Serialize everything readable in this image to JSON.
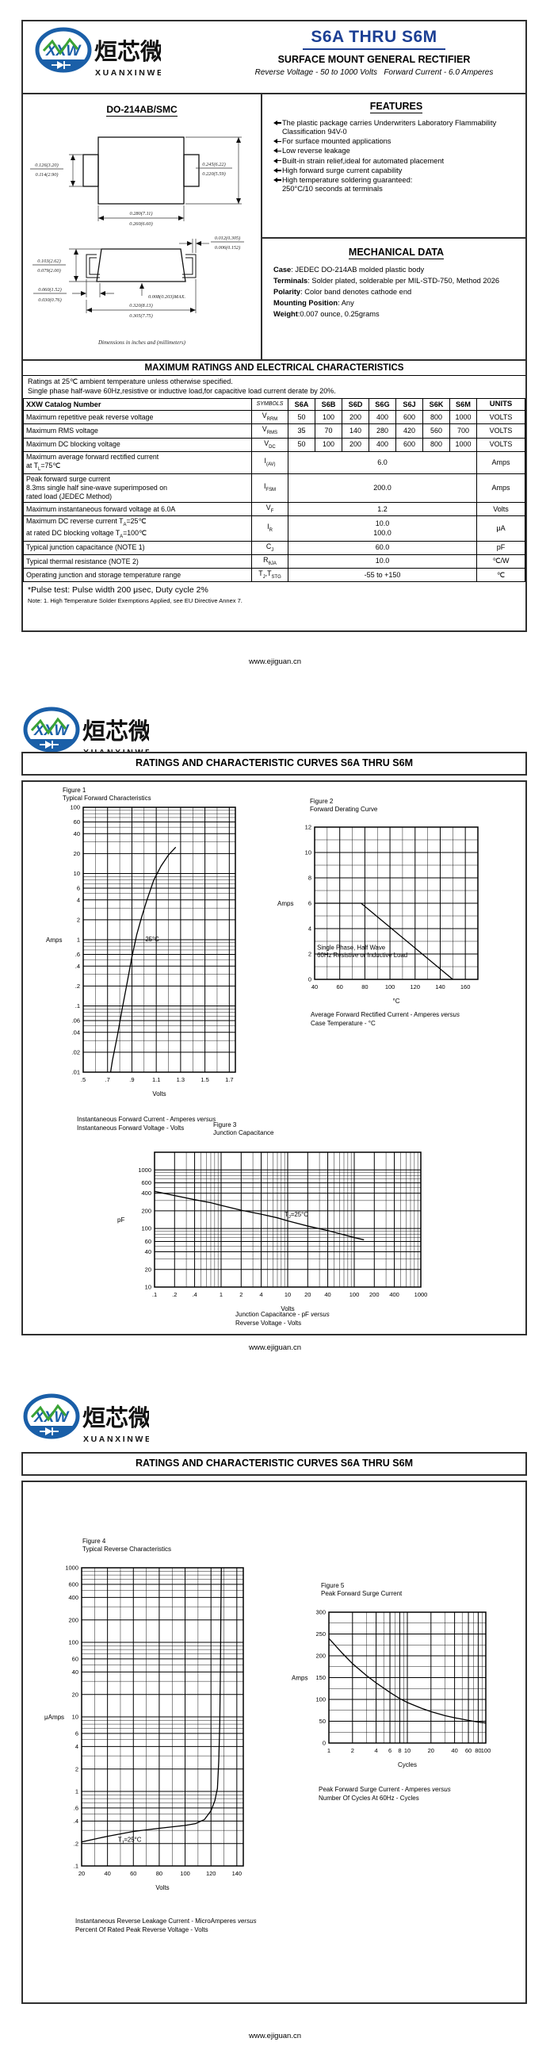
{
  "colors": {
    "title_blue": "#1c3f94",
    "logo_blue": "#1a5fa8",
    "logo_green": "#3aa335",
    "border": "#2f2f2f"
  },
  "brand": {
    "logo_text": "XXW",
    "name_cn": "烜芯微",
    "name_en": "XUANXINWEI"
  },
  "page1": {
    "title": "S6A THRU S6M",
    "subtitle": "SURFACE MOUNT GENERAL RECTIFIER",
    "tagline": "Reverse Voltage - 50 to 1000 Volts   Forward Current - 6.0 Amperes",
    "package": {
      "name": "DO-214AB/SMC",
      "dims": {
        "tab_height": [
          "0.126(3.20)",
          "0.114(2.90)"
        ],
        "body_height": [
          "0.245(6.22)",
          "0.220(5.59)"
        ],
        "body_width": [
          "0.280(7.11)",
          "0.260(6.60)"
        ],
        "lead_thickness": [
          "0.012(0.305)",
          "0.006(0.152)"
        ],
        "side_height": [
          "0.103(2.62)",
          "0.079(2.00)"
        ],
        "lead_length": [
          "0.060(1.52)",
          "0.030(0.76)"
        ],
        "standoff": "0.008(0.203)MAX.",
        "overall_width": [
          "0.320(8.13)",
          "0.305(7.75)"
        ]
      },
      "caption": "Dimensions in inches and (millimeters)"
    },
    "features": {
      "heading": "FEATURES",
      "items": [
        "The plastic package carries Underwriters Laboratory Flammability Classification 94V-0",
        "For surface mounted applications",
        "Low reverse leakage",
        "Built-in strain relief,ideal for automated placement",
        "High forward surge current capability",
        "High temperature soldering guaranteed:\n250°C/10 seconds at terminals"
      ]
    },
    "mechanical": {
      "heading": "MECHANICAL DATA",
      "lines": [
        {
          "label": "Case",
          "text": ": JEDEC DO-214AB molded plastic body"
        },
        {
          "label": "Terminals",
          "text": ": Solder plated, solderable per MIL-STD-750, Method 2026"
        },
        {
          "label": "Polarity",
          "text": ": Color band denotes cathode end"
        },
        {
          "label": "Mounting Position",
          "text": ": Any"
        },
        {
          "label": "Weight",
          "text": ":0.007 ounce, 0.25grams"
        }
      ]
    },
    "ratings": {
      "title": "MAXIMUM RATINGS AND ELECTRICAL CHARACTERISTICS",
      "conditions": [
        "Ratings at 25℃ ambient temperature unless otherwise specified.",
        "Single phase half-wave 60Hz,resistive or inductive load,for capacitive load current derate by 20%."
      ],
      "header": [
        "XXW Catalog Number",
        "SYMBOLS",
        "S6A",
        "S6B",
        "S6D",
        "S6G",
        "S6J",
        "S6K",
        "S6M",
        "UNITS"
      ],
      "rows": [
        {
          "param": [
            "Maximum repetitive peak reverse voltage"
          ],
          "symbol": "V~RRM~",
          "values": [
            "50",
            "100",
            "200",
            "400",
            "600",
            "800",
            "1000"
          ],
          "unit": "VOLTS"
        },
        {
          "param": [
            "Maximum RMS voltage"
          ],
          "symbol": "V~RMS~",
          "values": [
            "35",
            "70",
            "140",
            "280",
            "420",
            "560",
            "700"
          ],
          "unit": "VOLTS"
        },
        {
          "param": [
            "Maximum DC blocking voltage"
          ],
          "symbol": "V~DC~",
          "values": [
            "50",
            "100",
            "200",
            "400",
            "600",
            "800",
            "1000"
          ],
          "unit": "VOLTS"
        },
        {
          "param": [
            "Maximum average forward rectified current",
            "at T~L~=75℃"
          ],
          "symbol": "I~(AV)~",
          "values": [
            "6.0"
          ],
          "unit": "Amps"
        },
        {
          "param": [
            "Peak forward surge current",
            "8.3ms single half sine-wave superimposed on",
            "rated load (JEDEC Method)"
          ],
          "symbol": "I~FSM~",
          "values": [
            "200.0"
          ],
          "unit": "Amps"
        },
        {
          "param": [
            "Maximum instantaneous forward voltage at 6.0A"
          ],
          "symbol": "V~F~",
          "values": [
            "1.2"
          ],
          "unit": "Volts"
        },
        {
          "param": [
            "Maximum DC reverse current    T~A~=25℃",
            "at rated DC blocking voltage    T~A~=100℃"
          ],
          "symbol": "I~R~",
          "values": [
            "10.0",
            "100.0"
          ],
          "unit": "μA"
        },
        {
          "param": [
            "Typical junction capacitance (NOTE 1)"
          ],
          "symbol": "C~J~",
          "values": [
            "60.0"
          ],
          "unit": "pF"
        },
        {
          "param": [
            "Typical thermal resistance (NOTE 2)"
          ],
          "symbol": "R~θJA~",
          "values": [
            "10.0"
          ],
          "unit": "℃/W"
        },
        {
          "param": [
            "Operating junction and storage temperature range"
          ],
          "symbol": "T~J~,T~STG~",
          "values": [
            "-55 to +150"
          ],
          "unit": "℃"
        }
      ],
      "pulse_note": "*Pulse test: Pulse width 200 μsec, Duty cycle 2%",
      "note": "Note:    1.  High Temperature Solder Exemptions Applied, see EU Directive Annex 7."
    },
    "footer": "www.ejiguan.cn"
  },
  "page2": {
    "header": "RATINGS AND CHARACTERISTIC CURVES S6A THRU S6M",
    "footer": "www.ejiguan.cn"
  },
  "page3": {
    "header": "RATINGS AND CHARACTERISTIC CURVES S6A THRU S6M",
    "footer": "www.ejiguan.cn"
  },
  "chart_data": [
    {
      "id": "figure-1",
      "type": "line",
      "title": "Figure 1",
      "subtitle": "Typical Forward Characteristics",
      "xlabel": "Volts",
      "ylabel": "Amps",
      "xscale": "linear",
      "yscale": "log",
      "xlim": [
        0.5,
        1.75
      ],
      "ylim": [
        0.01,
        100
      ],
      "xgrid": 0.1,
      "xticks": {
        "values": [
          0.5,
          0.7,
          0.9,
          1.1,
          1.3,
          1.5,
          1.7
        ],
        "labels": [
          ".5",
          ".7",
          ".9",
          "1.1",
          "1.3",
          "1.5",
          "1.7"
        ]
      },
      "yticks": {
        "values": [
          100,
          60,
          40,
          20,
          10,
          6,
          4,
          2,
          1,
          0.6,
          0.4,
          0.2,
          0.1,
          0.06,
          0.04,
          0.02,
          0.01
        ],
        "labels": [
          "100",
          "60",
          "40",
          "20",
          "10",
          "6",
          "4",
          "2",
          "1",
          ".6",
          ".4",
          ".2",
          ".1",
          ".06",
          ".04",
          ".02",
          ".01"
        ]
      },
      "annotations": [
        {
          "x": 1.01,
          "y": 0.95,
          "lines": [
            "25°C"
          ]
        }
      ],
      "series": [
        {
          "name": "25°C",
          "points": [
            [
              0.725,
              0.01
            ],
            [
              0.74,
              0.015
            ],
            [
              0.78,
              0.035
            ],
            [
              0.82,
              0.09
            ],
            [
              0.86,
              0.22
            ],
            [
              0.9,
              0.55
            ],
            [
              0.94,
              1.2
            ],
            [
              0.98,
              2.2
            ],
            [
              1.02,
              3.8
            ],
            [
              1.08,
              8
            ],
            [
              1.14,
              13
            ],
            [
              1.2,
              19
            ],
            [
              1.26,
              25
            ]
          ]
        }
      ],
      "caption": [
        "Instantaneous Forward Current - Amperes versus",
        "Instantaneous Forward Voltage - Volts"
      ]
    },
    {
      "id": "figure-2",
      "type": "line",
      "title": "Figure 2",
      "subtitle": "Forward Derating Curve",
      "xlabel": "°C",
      "ylabel": "Amps",
      "xscale": "linear",
      "yscale": "linear",
      "xlim": [
        40,
        170
      ],
      "ylim": [
        0,
        12
      ],
      "xgrid": 10,
      "ygrid": 1,
      "xticks": {
        "values": [
          40,
          60,
          80,
          100,
          120,
          140,
          160
        ],
        "labels": [
          "40",
          "60",
          "80",
          "100",
          "120",
          "140",
          "160"
        ]
      },
      "yticks": {
        "values": [
          0,
          2,
          4,
          6,
          8,
          10,
          12
        ],
        "labels": [
          "0",
          "2",
          "4",
          "6",
          "8",
          "10",
          "12"
        ]
      },
      "annotations": [
        {
          "x": 42,
          "y": 2.35,
          "lines": [
            "Single Phase, Half Wave",
            "60Hz Resistive or Inductive Load"
          ]
        }
      ],
      "series": [
        {
          "name": "derating",
          "points": [
            [
              40,
              6
            ],
            [
              77,
              6
            ],
            [
              150,
              0
            ]
          ]
        }
      ],
      "caption": [
        "Average Forward Rectified Current  -  Amperes versus",
        "Case Temperature  - °C"
      ]
    },
    {
      "id": "figure-3",
      "type": "line",
      "title": "Figure 3",
      "subtitle": "Junction Capacitance",
      "xlabel": "Volts",
      "ylabel": "pF",
      "xscale": "log",
      "yscale": "log",
      "xlim": [
        0.1,
        1000
      ],
      "ylim": [
        10,
        2000
      ],
      "xticks": {
        "values": [
          0.1,
          0.2,
          0.4,
          1,
          2,
          4,
          10,
          20,
          40,
          100,
          200,
          400,
          1000
        ],
        "labels": [
          ".1",
          ".2",
          ".4",
          "1",
          "2",
          "4",
          "10",
          "20",
          "40",
          "100",
          "200",
          "400",
          "1000"
        ]
      },
      "yticks": {
        "values": [
          1000,
          600,
          400,
          200,
          100,
          60,
          40,
          20,
          10
        ],
        "labels": [
          "1000",
          "600",
          "400",
          "200",
          "100",
          "60",
          "40",
          "20",
          "10"
        ]
      },
      "annotations": [
        {
          "x": 9,
          "y": 160,
          "lines": [
            "T~J~=25°C"
          ]
        }
      ],
      "series": [
        {
          "name": "TJ=25C",
          "points": [
            [
              0.1,
              430
            ],
            [
              0.2,
              365
            ],
            [
              0.4,
              310
            ],
            [
              0.7,
              275
            ],
            [
              1,
              248
            ],
            [
              2,
              205
            ],
            [
              4,
              175
            ],
            [
              7,
              152
            ],
            [
              10,
              135
            ],
            [
              20,
              110
            ],
            [
              40,
              92
            ],
            [
              70,
              78
            ],
            [
              100,
              70
            ],
            [
              140,
              64
            ]
          ]
        }
      ],
      "caption": [
        "Junction Capacitance - pF versus",
        "Reverse Voltage - Volts"
      ]
    },
    {
      "id": "figure-4",
      "type": "line",
      "title": "Figure 4",
      "subtitle": "Typical Reverse Characteristics",
      "xlabel": "Volts",
      "ylabel": "μAmps",
      "xscale": "linear",
      "yscale": "log",
      "xlim": [
        20,
        145
      ],
      "ylim": [
        0.1,
        1000
      ],
      "xgrid": 10,
      "xticks": {
        "values": [
          20,
          40,
          60,
          80,
          100,
          120,
          140
        ],
        "labels": [
          "20",
          "40",
          "60",
          "80",
          "100",
          "120",
          "140"
        ]
      },
      "yticks": {
        "values": [
          1000,
          600,
          400,
          200,
          100,
          60,
          40,
          20,
          10,
          6,
          4,
          2,
          1,
          0.6,
          0.4,
          0.2,
          0.1
        ],
        "labels": [
          "1000",
          "600",
          "400",
          "200",
          "100",
          "60",
          "40",
          "20",
          "10",
          "6",
          "4",
          "2",
          "1",
          ".6",
          ".4",
          ".2",
          ".1"
        ]
      },
      "annotations": [
        {
          "x": 48,
          "y": 0.21,
          "lines": [
            "T~J~=25°C"
          ]
        }
      ],
      "series": [
        {
          "name": "TJ=25C",
          "points": [
            [
              20,
              0.21
            ],
            [
              40,
              0.25
            ],
            [
              60,
              0.29
            ],
            [
              80,
              0.32
            ],
            [
              100,
              0.35
            ],
            [
              108,
              0.37
            ],
            [
              115,
              0.42
            ],
            [
              120,
              0.55
            ],
            [
              123,
              0.75
            ],
            [
              125,
              1.1
            ],
            [
              126,
              2.5
            ],
            [
              126.8,
              8
            ],
            [
              127.3,
              40
            ],
            [
              127.7,
              300
            ],
            [
              128,
              1000
            ]
          ]
        }
      ],
      "caption": [
        "Instantaneous Reverse Leakage Current - MicroAmperes versus",
        "Percent Of Rated Peak Reverse Voltage - Volts"
      ]
    },
    {
      "id": "figure-5",
      "type": "line",
      "title": "Figure 5",
      "subtitle": "Peak Forward Surge Current",
      "xlabel": "Cycles",
      "ylabel": "Amps",
      "xscale": "log",
      "yscale": "linear",
      "xlim": [
        1,
        100
      ],
      "ylim": [
        0,
        300
      ],
      "ygrid": 25,
      "xticks": {
        "values": [
          1,
          2,
          4,
          6,
          8,
          10,
          20,
          40,
          60,
          80,
          100
        ],
        "labels": [
          "1",
          "2",
          "4",
          "6",
          "8",
          "10",
          "20",
          "40",
          "60",
          "80",
          "100"
        ]
      },
      "yticks": {
        "values": [
          0,
          50,
          100,
          150,
          200,
          250,
          300
        ],
        "labels": [
          "0",
          "50",
          "100",
          "150",
          "200",
          "250",
          "300"
        ]
      },
      "annotations": [],
      "series": [
        {
          "name": "surge",
          "points": [
            [
              1,
              240
            ],
            [
              1.5,
              205
            ],
            [
              2,
              182
            ],
            [
              3,
              155
            ],
            [
              4,
              138
            ],
            [
              6,
              116
            ],
            [
              8,
              102
            ],
            [
              10,
              93
            ],
            [
              15,
              80
            ],
            [
              20,
              72
            ],
            [
              30,
              63
            ],
            [
              40,
              58
            ],
            [
              60,
              52
            ],
            [
              80,
              48
            ],
            [
              100,
              46
            ]
          ]
        }
      ],
      "caption": [
        "Peak Forward Surge Current - Amperes versus",
        "Number Of Cycles At 60Hz - Cycles"
      ]
    }
  ]
}
